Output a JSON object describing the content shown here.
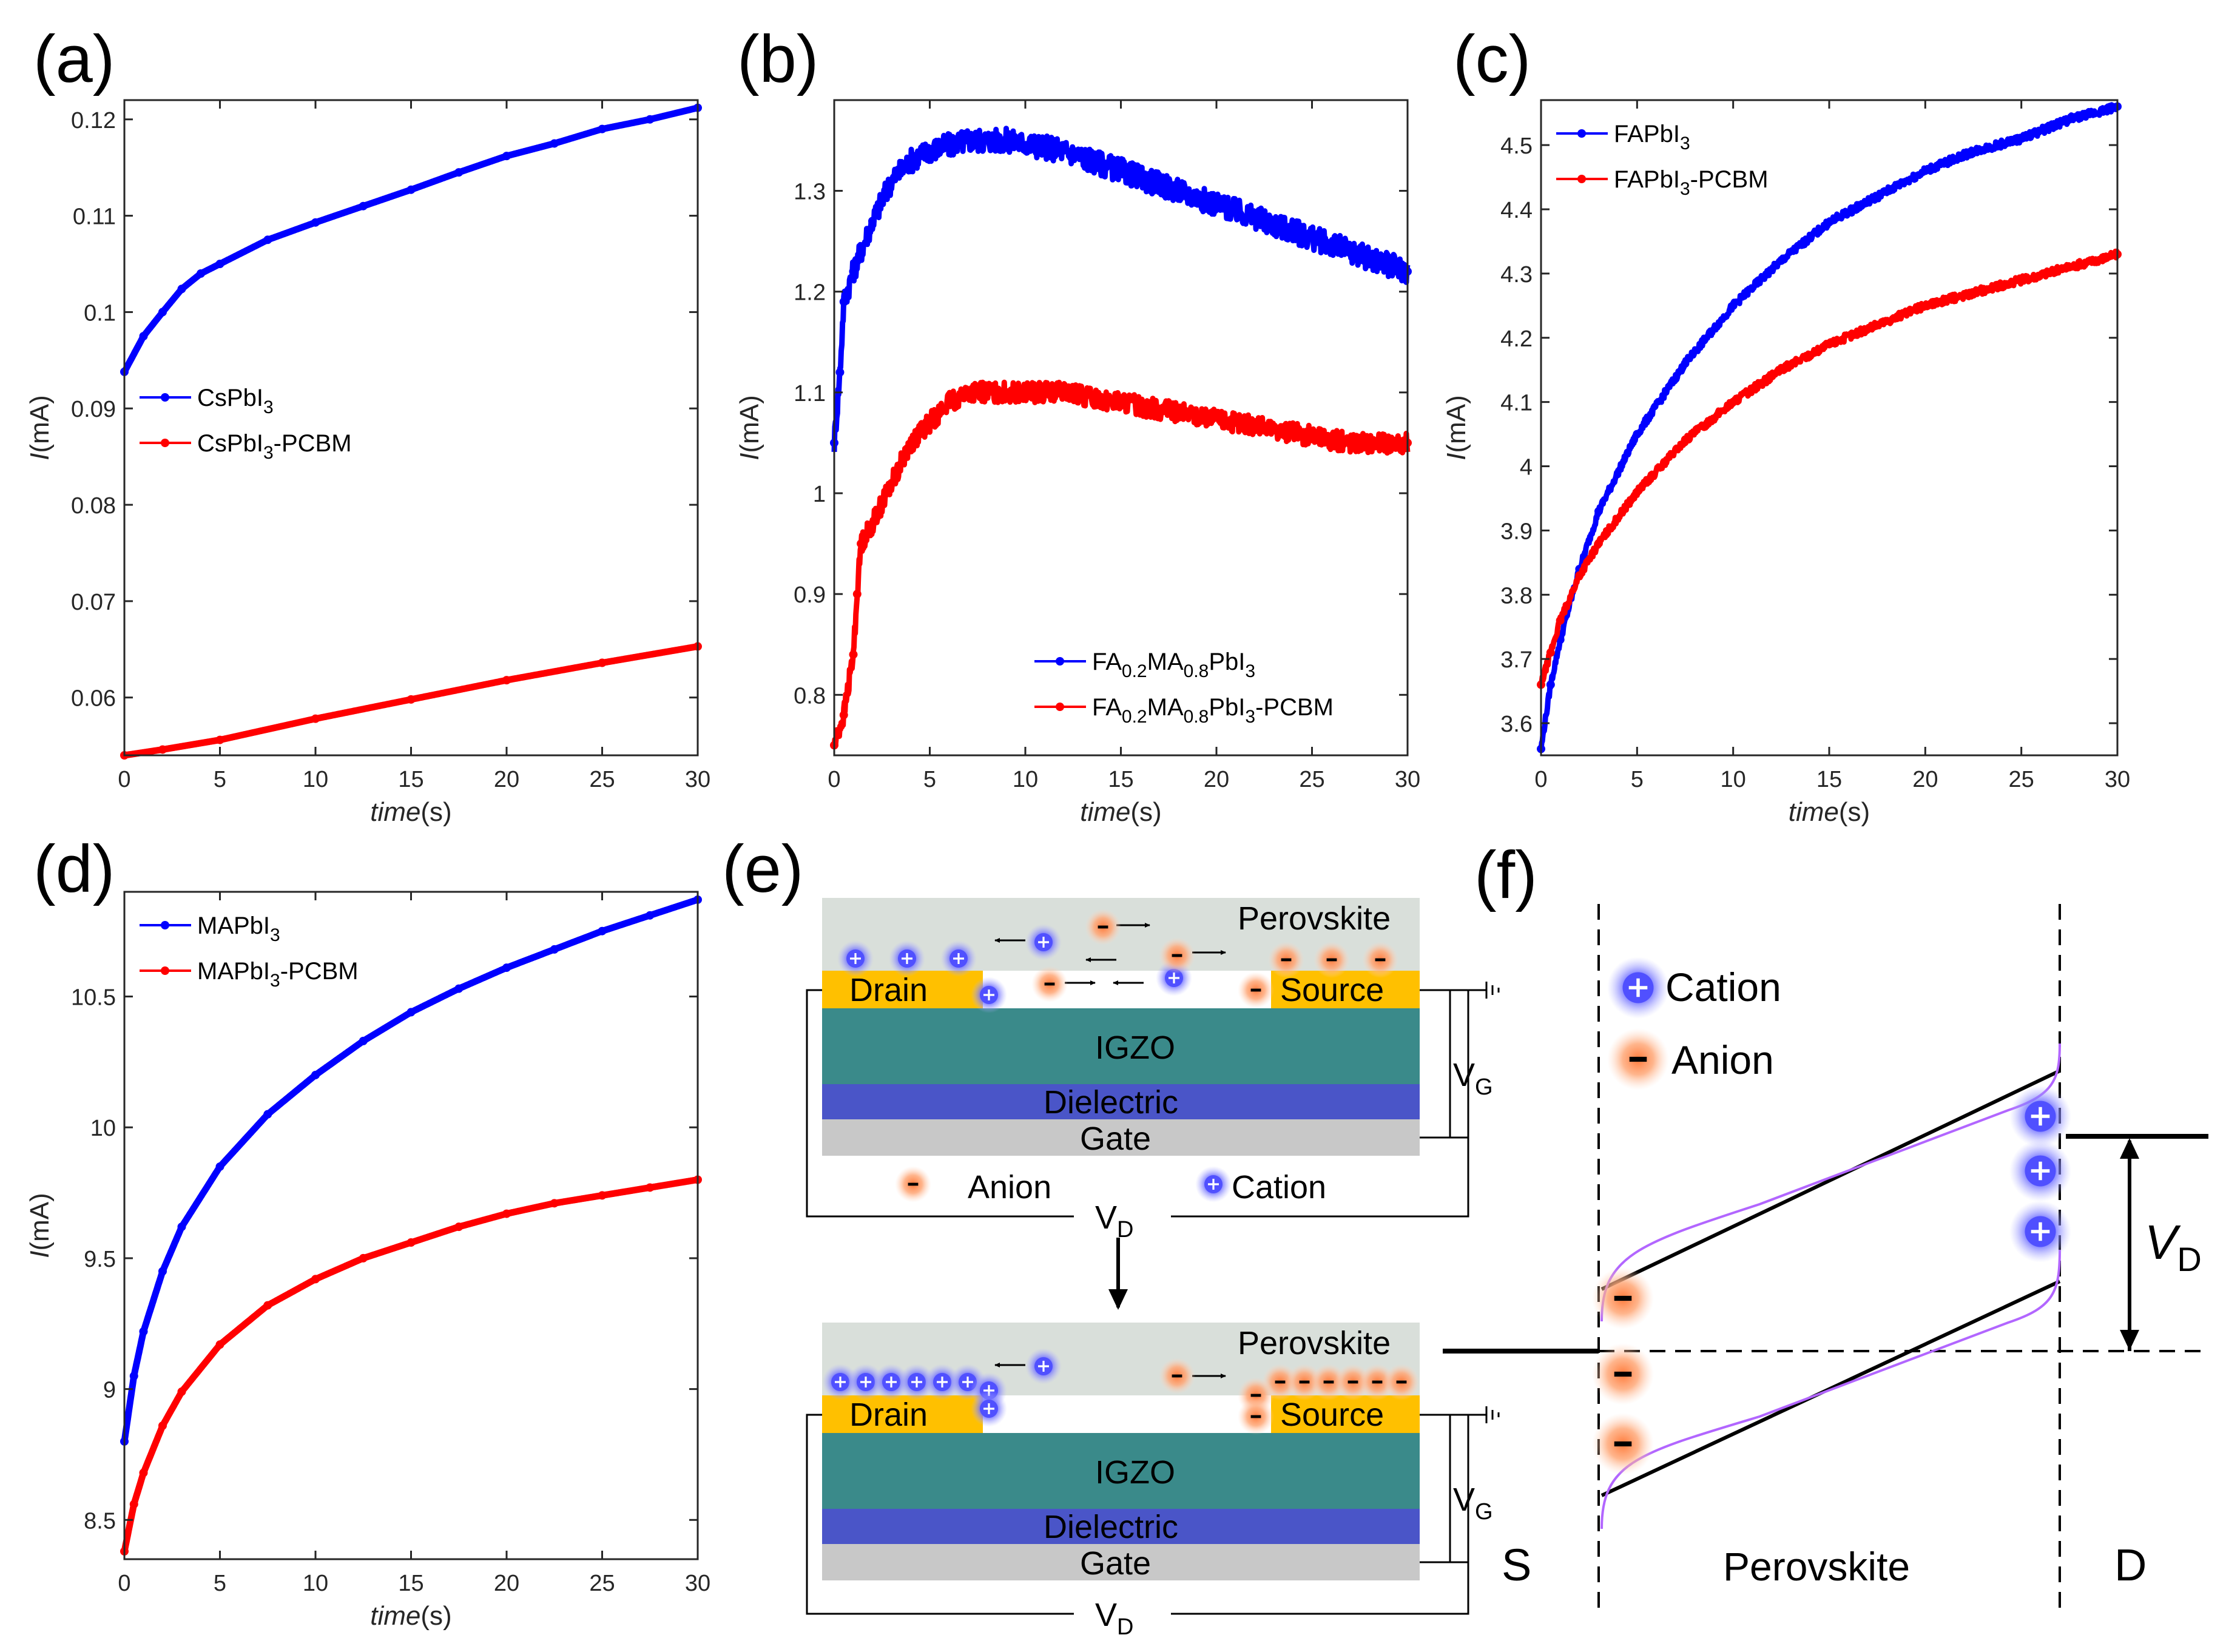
{
  "figure": {
    "panel_labels": [
      "(a)",
      "(b)",
      "(c)",
      "(d)",
      "(e)",
      "(f)"
    ],
    "colors": {
      "blue": "#0000ff",
      "red": "#ff0000",
      "perovskite": "#d9dfda",
      "electrode": "#ffc000",
      "igzo": "#3a8a8a",
      "dielectric": "#4a55c8",
      "gate": "#c8c8c8",
      "purple": "#b266ff"
    }
  },
  "chart_data": [
    {
      "id": "a",
      "type": "line",
      "xlabel_italic": "time",
      "xlabel_rest": "(s)",
      "ylabel_italic": "I",
      "ylabel_rest": "(mA)",
      "xlim": [
        0,
        30
      ],
      "ylim": [
        0.054,
        0.122
      ],
      "xticks": [
        0,
        5,
        10,
        15,
        20,
        25,
        30
      ],
      "yticks": [
        0.06,
        0.07,
        0.08,
        0.09,
        0.1,
        0.11,
        0.12
      ],
      "ytick_labels": [
        "0.06",
        "0.07",
        "0.08",
        "0.09",
        "0.1",
        "0.11",
        "0.12"
      ],
      "legend_location": "middle-left",
      "series": [
        {
          "name": "CsPbI3",
          "legend_text": "CsPbI",
          "legend_sub": "3",
          "legend_suffix": "",
          "color": "#0000ff",
          "x": [
            0,
            1,
            2,
            3,
            4,
            5,
            7.5,
            10,
            12.5,
            15,
            17.5,
            20,
            22.5,
            25,
            27.5,
            30
          ],
          "values": [
            0.0938,
            0.0975,
            0.1,
            0.1024,
            0.104,
            0.105,
            0.1075,
            0.1093,
            0.111,
            0.1127,
            0.1145,
            0.1162,
            0.1175,
            0.119,
            0.12,
            0.1212
          ]
        },
        {
          "name": "CsPbI3-PCBM",
          "legend_text": "CsPbI",
          "legend_sub": "3",
          "legend_suffix": "-PCBM",
          "color": "#ff0000",
          "x": [
            0,
            2,
            5,
            10,
            15,
            20,
            25,
            30
          ],
          "values": [
            0.054,
            0.0546,
            0.0556,
            0.0578,
            0.0598,
            0.0618,
            0.0636,
            0.0653
          ]
        }
      ]
    },
    {
      "id": "b",
      "type": "line",
      "xlabel_italic": "time",
      "xlabel_rest": "(s)",
      "ylabel_italic": "I",
      "ylabel_rest": "(mA)",
      "xlim": [
        0,
        30
      ],
      "ylim": [
        0.74,
        1.39
      ],
      "xticks": [
        0,
        5,
        10,
        15,
        20,
        25,
        30
      ],
      "yticks": [
        0.8,
        0.9,
        1,
        1.1,
        1.2,
        1.3
      ],
      "ytick_labels": [
        "0.8",
        "0.9",
        "1",
        "1.1",
        "1.2",
        "1.3"
      ],
      "legend_location": "bottom-right",
      "series": [
        {
          "name": "FA0.2MA0.8PbI3",
          "legend_text": "FA",
          "legend_parts": [
            "FA",
            "0.2",
            "MA",
            "0.8",
            "PbI",
            "3",
            ""
          ],
          "color": "#0000ff",
          "noise": 0.012,
          "x": [
            0,
            0.3,
            0.5,
            1,
            2,
            3,
            4,
            5,
            7,
            9,
            12,
            15,
            18,
            21,
            24,
            27,
            30
          ],
          "values": [
            1.05,
            1.12,
            1.19,
            1.22,
            1.27,
            1.31,
            1.33,
            1.34,
            1.35,
            1.35,
            1.34,
            1.32,
            1.3,
            1.28,
            1.26,
            1.24,
            1.22
          ]
        },
        {
          "name": "FA0.2MA0.8PbI3-PCBM",
          "legend_text": "FA",
          "legend_parts": [
            "FA",
            "0.2",
            "MA",
            "0.8",
            "PbI",
            "3",
            "-PCBM"
          ],
          "color": "#ff0000",
          "noise": 0.01,
          "x": [
            0,
            0.5,
            1,
            1.2,
            1.4,
            2,
            3,
            4,
            5,
            6,
            7,
            9,
            12,
            15,
            18,
            21,
            24,
            27,
            30
          ],
          "values": [
            0.75,
            0.78,
            0.84,
            0.9,
            0.95,
            0.97,
            1.01,
            1.05,
            1.07,
            1.09,
            1.1,
            1.1,
            1.1,
            1.09,
            1.08,
            1.07,
            1.06,
            1.05,
            1.05
          ]
        }
      ]
    },
    {
      "id": "c",
      "type": "line",
      "xlabel_italic": "time",
      "xlabel_rest": "(s)",
      "ylabel_italic": "I",
      "ylabel_rest": "(mA)",
      "xlim": [
        0,
        30
      ],
      "ylim": [
        3.55,
        4.57
      ],
      "xticks": [
        0,
        5,
        10,
        15,
        20,
        25,
        30
      ],
      "yticks": [
        3.6,
        3.7,
        3.8,
        3.9,
        4,
        4.1,
        4.2,
        4.3,
        4.4,
        4.5
      ],
      "ytick_labels": [
        "3.6",
        "3.7",
        "3.8",
        "3.9",
        "4",
        "4.1",
        "4.2",
        "4.3",
        "4.4",
        "4.5"
      ],
      "legend_location": "top-left",
      "series": [
        {
          "name": "FAPbI3",
          "legend_text": "FAPbI",
          "legend_sub": "3",
          "legend_suffix": "",
          "color": "#0000ff",
          "noise": 0.006,
          "x": [
            0,
            0.5,
            1,
            2,
            3,
            5,
            7.5,
            10,
            12.5,
            15,
            17.5,
            20,
            22.5,
            25,
            27.5,
            30
          ],
          "values": [
            3.56,
            3.66,
            3.73,
            3.84,
            3.93,
            4.05,
            4.16,
            4.25,
            4.32,
            4.38,
            4.42,
            4.46,
            4.49,
            4.51,
            4.54,
            4.56
          ]
        },
        {
          "name": "FAPbI3-PCBM",
          "legend_text": "FAPbI",
          "legend_sub": "3",
          "legend_suffix": "-PCBM",
          "color": "#ff0000",
          "noise": 0.006,
          "x": [
            0,
            0.5,
            1,
            2,
            3,
            5,
            7.5,
            10,
            12.5,
            15,
            17.5,
            20,
            22.5,
            25,
            27.5,
            30
          ],
          "values": [
            3.66,
            3.71,
            3.76,
            3.83,
            3.88,
            3.96,
            4.04,
            4.1,
            4.15,
            4.19,
            4.22,
            4.25,
            4.27,
            4.29,
            4.31,
            4.33
          ]
        }
      ]
    },
    {
      "id": "d",
      "type": "line",
      "xlabel_italic": "time",
      "xlabel_rest": "(s)",
      "ylabel_italic": "I",
      "ylabel_rest": "(mA)",
      "xlim": [
        0,
        30
      ],
      "ylim": [
        8.35,
        10.9
      ],
      "xticks": [
        0,
        5,
        10,
        15,
        20,
        25,
        30
      ],
      "yticks": [
        8.5,
        9,
        9.5,
        10,
        10.5
      ],
      "ytick_labels": [
        "8.5",
        "9",
        "9.5",
        "10",
        "10.5"
      ],
      "legend_location": "top-left",
      "series": [
        {
          "name": "MAPbI3",
          "legend_text": "MAPbI",
          "legend_sub": "3",
          "legend_suffix": "",
          "color": "#0000ff",
          "x": [
            0,
            0.5,
            1,
            2,
            3,
            5,
            7.5,
            10,
            12.5,
            15,
            17.5,
            20,
            22.5,
            25,
            27.5,
            30
          ],
          "values": [
            8.8,
            9.05,
            9.22,
            9.45,
            9.62,
            9.85,
            10.05,
            10.2,
            10.33,
            10.44,
            10.53,
            10.61,
            10.68,
            10.75,
            10.81,
            10.87
          ]
        },
        {
          "name": "MAPbI3-PCBM",
          "legend_text": "MAPbI",
          "legend_sub": "3",
          "legend_suffix": "-PCBM",
          "color": "#ff0000",
          "x": [
            0,
            0.5,
            1,
            2,
            3,
            5,
            7.5,
            10,
            12.5,
            15,
            17.5,
            20,
            22.5,
            25,
            27.5,
            30
          ],
          "values": [
            8.38,
            8.56,
            8.68,
            8.86,
            8.99,
            9.17,
            9.32,
            9.42,
            9.5,
            9.56,
            9.62,
            9.67,
            9.71,
            9.74,
            9.77,
            9.8
          ]
        }
      ]
    }
  ],
  "diagram_e": {
    "layers": {
      "perovskite": "Perovskite",
      "drain": "Drain",
      "source": "Source",
      "igzo": "IGZO",
      "dielectric": "Dielectric",
      "gate": "Gate"
    },
    "legend_anion": "Anion",
    "legend_cation": "Cation",
    "vg_main": "V",
    "vg_sub": "G",
    "vd_main": "V",
    "vd_sub": "D",
    "cation_symbol": "+",
    "anion_symbol": "−"
  },
  "diagram_f": {
    "legend_cation": "Cation",
    "legend_anion": "Anion",
    "label_s": "S",
    "label_d": "D",
    "label_perovskite": "Perovskite",
    "vd_main": "V",
    "vd_sub": "D"
  }
}
